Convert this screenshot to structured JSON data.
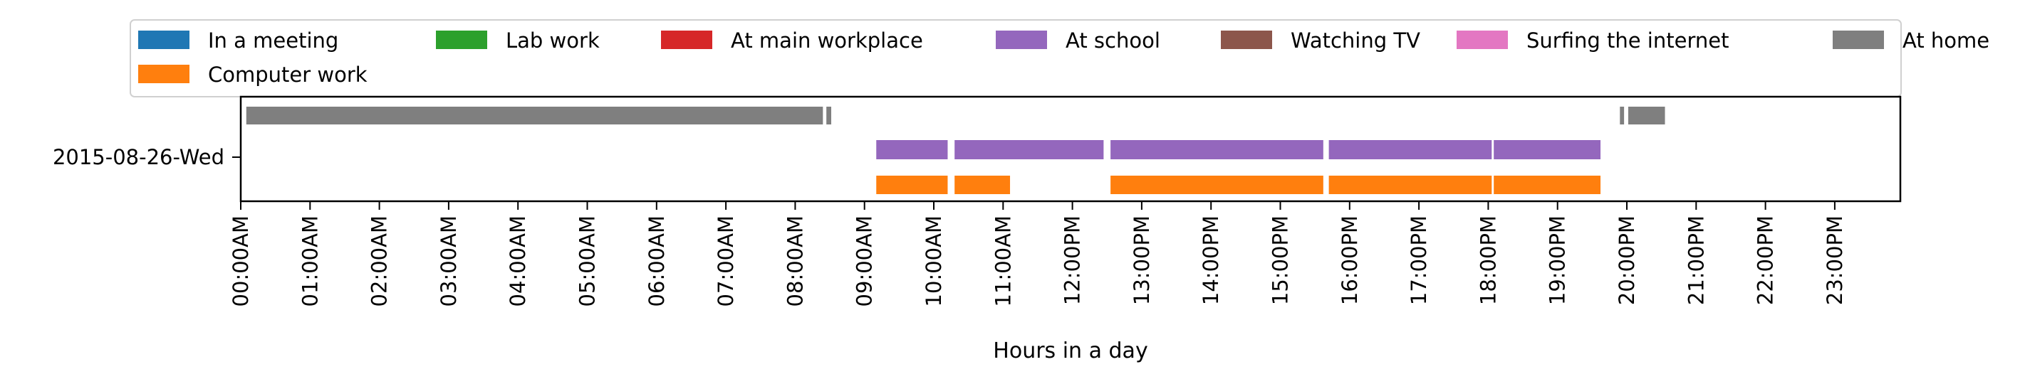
{
  "chart_data": {
    "type": "timeline",
    "title": "",
    "xlabel": "Hours in a day",
    "ylabel": "",
    "y_category": "2015-08-26-Wed",
    "xlim": [
      0,
      24
    ],
    "x_ticks": [
      "00:00AM",
      "01:00AM",
      "02:00AM",
      "03:00AM",
      "04:00AM",
      "05:00AM",
      "06:00AM",
      "07:00AM",
      "08:00AM",
      "09:00AM",
      "10:00AM",
      "11:00AM",
      "12:00PM",
      "13:00PM",
      "14:00PM",
      "15:00PM",
      "16:00PM",
      "17:00PM",
      "18:00PM",
      "19:00PM",
      "20:00PM",
      "21:00PM",
      "22:00PM",
      "23:00PM"
    ],
    "grid": false,
    "legend_position": "top",
    "legend": [
      {
        "name": "In a meeting",
        "color": "#1f77b4"
      },
      {
        "name": "Lab work",
        "color": "#2ca02c"
      },
      {
        "name": "At main workplace",
        "color": "#d62728"
      },
      {
        "name": "At school",
        "color": "#9467bd"
      },
      {
        "name": "Watching TV",
        "color": "#8c564b"
      },
      {
        "name": "Surfing the internet",
        "color": "#e377c2"
      },
      {
        "name": "At home",
        "color": "#7f7f7f"
      },
      {
        "name": "Computer work",
        "color": "#ff7f0e"
      }
    ],
    "series": [
      {
        "name": "At home",
        "color": "#7f7f7f",
        "lane": "top",
        "intervals": [
          [
            0.08,
            8.4
          ],
          [
            8.45,
            8.52
          ],
          [
            19.9,
            19.96
          ],
          [
            20.02,
            20.55
          ]
        ]
      },
      {
        "name": "At school",
        "color": "#9467bd",
        "lane": "middle",
        "intervals": [
          [
            9.17,
            10.2
          ],
          [
            10.3,
            12.45
          ],
          [
            12.55,
            15.62
          ],
          [
            15.7,
            18.05
          ],
          [
            18.08,
            19.62
          ]
        ]
      },
      {
        "name": "Computer work",
        "color": "#ff7f0e",
        "lane": "bottom",
        "intervals": [
          [
            9.17,
            10.2
          ],
          [
            10.3,
            11.1
          ],
          [
            12.55,
            15.62
          ],
          [
            15.7,
            18.05
          ],
          [
            18.08,
            19.62
          ]
        ]
      }
    ]
  }
}
